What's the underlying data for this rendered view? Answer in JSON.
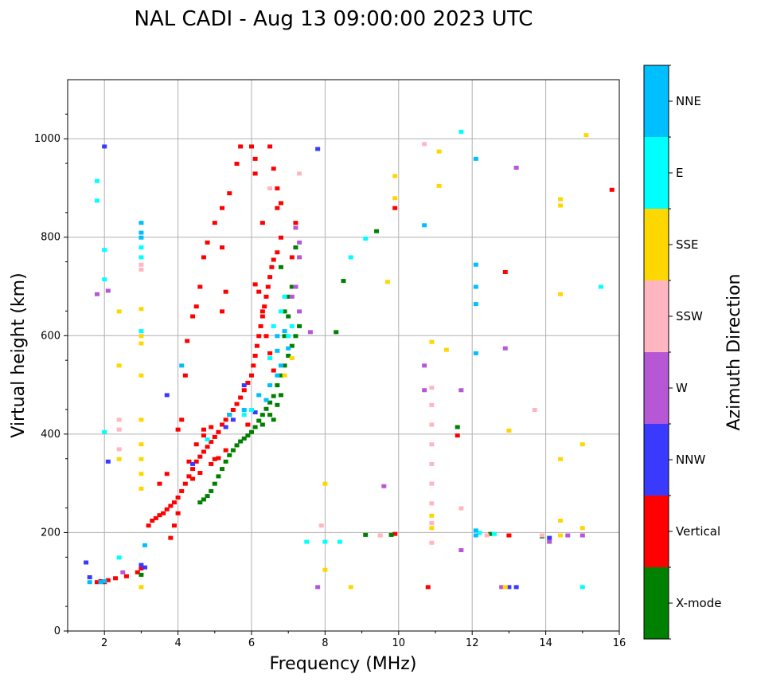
{
  "chart_data": {
    "type": "scatter",
    "title": "NAL CADI - Aug 13 09:00:00 2023 UTC",
    "xlabel": "Frequency (MHz)",
    "ylabel": "Virtual height (km)",
    "xlim": [
      1,
      16
    ],
    "ylim": [
      0,
      1120
    ],
    "xticks": [
      2,
      4,
      6,
      8,
      10,
      12,
      14,
      16
    ],
    "yticks": [
      0,
      200,
      400,
      600,
      800,
      1000
    ],
    "grid": true,
    "colorbar": {
      "label": "Azimuth Direction",
      "categories": [
        "X-mode",
        "Vertical",
        "NNW",
        "W",
        "SSW",
        "SSE",
        "E",
        "NNE"
      ],
      "colors": [
        "#008000",
        "#ff0000",
        "#3a3aff",
        "#b657d6",
        "#ffb6c1",
        "#ffd700",
        "#00ffff",
        "#00bfff"
      ]
    },
    "series": [
      {
        "name": "Vertical",
        "color": "#ff0000",
        "points": [
          [
            1.8,
            100
          ],
          [
            1.9,
            102
          ],
          [
            2.0,
            100
          ],
          [
            2.1,
            104
          ],
          [
            2.3,
            108
          ],
          [
            2.6,
            112
          ],
          [
            2.9,
            120
          ],
          [
            3.0,
            128
          ],
          [
            3.2,
            215
          ],
          [
            3.3,
            225
          ],
          [
            3.4,
            230
          ],
          [
            3.5,
            236
          ],
          [
            3.6,
            240
          ],
          [
            3.7,
            248
          ],
          [
            3.8,
            255
          ],
          [
            3.9,
            262
          ],
          [
            4.0,
            272
          ],
          [
            4.1,
            285
          ],
          [
            4.2,
            300
          ],
          [
            4.3,
            315
          ],
          [
            4.4,
            330
          ],
          [
            4.5,
            345
          ],
          [
            4.6,
            355
          ],
          [
            4.7,
            365
          ],
          [
            4.8,
            375
          ],
          [
            4.9,
            385
          ],
          [
            5.0,
            395
          ],
          [
            5.1,
            405
          ],
          [
            5.2,
            420
          ],
          [
            5.3,
            430
          ],
          [
            5.4,
            440
          ],
          [
            5.5,
            450
          ],
          [
            5.6,
            462
          ],
          [
            5.7,
            475
          ],
          [
            5.8,
            490
          ],
          [
            5.9,
            505
          ],
          [
            6.0,
            520
          ],
          [
            6.05,
            540
          ],
          [
            6.1,
            560
          ],
          [
            6.15,
            580
          ],
          [
            6.2,
            600
          ],
          [
            6.25,
            620
          ],
          [
            6.3,
            640
          ],
          [
            6.35,
            660
          ],
          [
            6.4,
            680
          ],
          [
            6.45,
            700
          ],
          [
            6.5,
            720
          ],
          [
            6.55,
            740
          ],
          [
            6.6,
            755
          ],
          [
            6.7,
            770
          ],
          [
            6.1,
            705
          ],
          [
            6.2,
            690
          ],
          [
            6.3,
            650
          ],
          [
            6.4,
            600
          ],
          [
            6.5,
            565
          ],
          [
            6.6,
            530
          ],
          [
            4.9,
            340
          ],
          [
            5.1,
            352
          ],
          [
            5.3,
            368
          ],
          [
            4.6,
            322
          ],
          [
            4.4,
            310
          ],
          [
            4.7,
            398
          ],
          [
            4.9,
            415
          ],
          [
            5.0,
            350
          ],
          [
            4.7,
            410
          ],
          [
            4.5,
            380
          ],
          [
            4.3,
            345
          ],
          [
            4.0,
            410
          ],
          [
            4.1,
            430
          ],
          [
            4.25,
            590
          ],
          [
            4.4,
            640
          ],
          [
            4.5,
            660
          ],
          [
            4.6,
            700
          ],
          [
            4.7,
            760
          ],
          [
            4.8,
            790
          ],
          [
            5.0,
            830
          ],
          [
            5.2,
            860
          ],
          [
            5.4,
            890
          ],
          [
            5.6,
            950
          ],
          [
            5.7,
            985
          ],
          [
            6.0,
            985
          ],
          [
            6.1,
            960
          ],
          [
            6.5,
            985
          ],
          [
            6.6,
            940
          ],
          [
            6.7,
            900
          ],
          [
            6.8,
            870
          ],
          [
            6.3,
            830
          ],
          [
            6.7,
            860
          ],
          [
            5.2,
            780
          ],
          [
            5.3,
            690
          ],
          [
            5.2,
            650
          ],
          [
            6.1,
            930
          ],
          [
            6.8,
            800
          ],
          [
            7.1,
            760
          ],
          [
            7.2,
            830
          ],
          [
            5.9,
            420
          ],
          [
            10.8,
            90
          ],
          [
            13.0,
            195
          ],
          [
            12.9,
            730
          ],
          [
            15.8,
            897
          ],
          [
            11.6,
            398
          ],
          [
            4.2,
            520
          ],
          [
            9.9,
            198
          ],
          [
            9.9,
            860
          ],
          [
            3.8,
            190
          ],
          [
            3.9,
            215
          ],
          [
            4.0,
            240
          ],
          [
            3.5,
            300
          ],
          [
            3.7,
            320
          ]
        ]
      },
      {
        "name": "X-mode",
        "color": "#008000",
        "points": [
          [
            4.6,
            262
          ],
          [
            4.7,
            268
          ],
          [
            4.8,
            275
          ],
          [
            4.9,
            285
          ],
          [
            5.0,
            300
          ],
          [
            5.1,
            315
          ],
          [
            5.2,
            330
          ],
          [
            5.3,
            345
          ],
          [
            5.4,
            358
          ],
          [
            5.5,
            368
          ],
          [
            5.6,
            378
          ],
          [
            5.7,
            386
          ],
          [
            5.8,
            392
          ],
          [
            5.9,
            398
          ],
          [
            6.0,
            405
          ],
          [
            6.1,
            415
          ],
          [
            6.2,
            428
          ],
          [
            6.3,
            440
          ],
          [
            6.4,
            452
          ],
          [
            6.5,
            465
          ],
          [
            6.6,
            478
          ],
          [
            6.7,
            500
          ],
          [
            6.8,
            520
          ],
          [
            6.9,
            540
          ],
          [
            7.0,
            560
          ],
          [
            7.1,
            580
          ],
          [
            7.2,
            600
          ],
          [
            7.3,
            620
          ],
          [
            6.6,
            430
          ],
          [
            6.7,
            460
          ],
          [
            6.8,
            480
          ],
          [
            6.5,
            440
          ],
          [
            6.3,
            420
          ],
          [
            6.9,
            650
          ],
          [
            7.0,
            680
          ],
          [
            7.1,
            700
          ],
          [
            6.9,
            600
          ],
          [
            7.0,
            640
          ],
          [
            7.2,
            780
          ],
          [
            6.8,
            740
          ],
          [
            8.3,
            608
          ],
          [
            8.5,
            712
          ],
          [
            9.4,
            813
          ],
          [
            9.1,
            196
          ],
          [
            9.8,
            196
          ],
          [
            12.5,
            198
          ],
          [
            13.9,
            193
          ],
          [
            11.6,
            415
          ],
          [
            3.0,
            115
          ]
        ]
      },
      {
        "name": "NNW",
        "color": "#3a3aff",
        "points": [
          [
            1.5,
            140
          ],
          [
            1.6,
            110
          ],
          [
            2.0,
            985
          ],
          [
            2.1,
            345
          ],
          [
            3.0,
            135
          ],
          [
            3.1,
            130
          ],
          [
            3.7,
            480
          ],
          [
            4.4,
            340
          ],
          [
            5.3,
            415
          ],
          [
            5.5,
            430
          ],
          [
            5.8,
            500
          ],
          [
            6.1,
            445
          ],
          [
            7.8,
            980
          ],
          [
            13.2,
            90
          ],
          [
            13.0,
            90
          ],
          [
            14.1,
            190
          ]
        ]
      },
      {
        "name": "W",
        "color": "#b657d6",
        "points": [
          [
            7.2,
            820
          ],
          [
            7.3,
            790
          ],
          [
            7.3,
            760
          ],
          [
            7.2,
            700
          ],
          [
            7.1,
            680
          ],
          [
            7.3,
            650
          ],
          [
            2.1,
            692
          ],
          [
            1.8,
            685
          ],
          [
            2.5,
            120
          ],
          [
            7.8,
            90
          ],
          [
            9.6,
            295
          ],
          [
            10.7,
            490
          ],
          [
            10.7,
            540
          ],
          [
            11.7,
            165
          ],
          [
            11.7,
            490
          ],
          [
            12.9,
            575
          ],
          [
            13.2,
            942
          ],
          [
            14.1,
            182
          ],
          [
            14.6,
            195
          ],
          [
            15.0,
            195
          ],
          [
            12.8,
            90
          ],
          [
            7.6,
            608
          ]
        ]
      },
      {
        "name": "SSW",
        "color": "#ffb6c1",
        "points": [
          [
            2.4,
            430
          ],
          [
            2.4,
            410
          ],
          [
            2.4,
            370
          ],
          [
            3.0,
            745
          ],
          [
            3.0,
            735
          ],
          [
            10.9,
            180
          ],
          [
            10.9,
            220
          ],
          [
            10.9,
            260
          ],
          [
            10.9,
            300
          ],
          [
            10.9,
            340
          ],
          [
            10.9,
            380
          ],
          [
            10.9,
            420
          ],
          [
            10.9,
            460
          ],
          [
            10.9,
            495
          ],
          [
            10.7,
            990
          ],
          [
            13.9,
            195
          ],
          [
            13.7,
            450
          ],
          [
            7.3,
            930
          ],
          [
            6.5,
            900
          ],
          [
            9.5,
            195
          ],
          [
            7.9,
            215
          ],
          [
            11.7,
            250
          ],
          [
            12.4,
            195
          ]
        ]
      },
      {
        "name": "SSE",
        "color": "#ffd700",
        "points": [
          [
            3.0,
            290
          ],
          [
            3.0,
            320
          ],
          [
            3.0,
            350
          ],
          [
            3.0,
            380
          ],
          [
            3.0,
            430
          ],
          [
            3.0,
            520
          ],
          [
            3.0,
            585
          ],
          [
            3.0,
            600
          ],
          [
            3.0,
            655
          ],
          [
            2.4,
            540
          ],
          [
            2.4,
            650
          ],
          [
            2.4,
            350
          ],
          [
            10.9,
            210
          ],
          [
            10.9,
            235
          ],
          [
            10.9,
            588
          ],
          [
            11.1,
            975
          ],
          [
            11.1,
            905
          ],
          [
            11.3,
            572
          ],
          [
            13.0,
            408
          ],
          [
            14.4,
            878
          ],
          [
            14.4,
            865
          ],
          [
            14.4,
            685
          ],
          [
            14.4,
            350
          ],
          [
            14.4,
            225
          ],
          [
            15.0,
            380
          ],
          [
            15.0,
            210
          ],
          [
            15.1,
            1008
          ],
          [
            9.9,
            925
          ],
          [
            9.9,
            880
          ],
          [
            9.7,
            710
          ],
          [
            8.0,
            300
          ],
          [
            8.0,
            125
          ],
          [
            8.7,
            90
          ],
          [
            6.9,
            520
          ],
          [
            7.1,
            555
          ],
          [
            12.9,
            90
          ],
          [
            14.4,
            195
          ],
          [
            3.0,
            90
          ]
        ]
      },
      {
        "name": "E",
        "color": "#00ffff",
        "points": [
          [
            3.0,
            780
          ],
          [
            3.0,
            760
          ],
          [
            3.0,
            610
          ],
          [
            1.8,
            915
          ],
          [
            1.8,
            875
          ],
          [
            2.0,
            715
          ],
          [
            2.0,
            775
          ],
          [
            2.0,
            405
          ],
          [
            2.4,
            150
          ],
          [
            6.8,
            650
          ],
          [
            6.9,
            680
          ],
          [
            7.0,
            600
          ],
          [
            7.1,
            620
          ],
          [
            6.6,
            620
          ],
          [
            6.5,
            555
          ],
          [
            5.8,
            440
          ],
          [
            6.0,
            450
          ],
          [
            4.8,
            390
          ],
          [
            7.5,
            182
          ],
          [
            8.0,
            182
          ],
          [
            8.4,
            182
          ],
          [
            8.7,
            760
          ],
          [
            9.1,
            798
          ],
          [
            15.0,
            90
          ],
          [
            15.5,
            700
          ],
          [
            11.7,
            1015
          ],
          [
            12.2,
            200
          ],
          [
            12.6,
            198
          ]
        ]
      },
      {
        "name": "NNE",
        "color": "#00bfff",
        "points": [
          [
            3.0,
            810
          ],
          [
            3.0,
            800
          ],
          [
            3.0,
            830
          ],
          [
            3.1,
            175
          ],
          [
            4.1,
            540
          ],
          [
            6.7,
            600
          ],
          [
            6.7,
            570
          ],
          [
            6.8,
            540
          ],
          [
            6.7,
            520
          ],
          [
            6.5,
            500
          ],
          [
            6.9,
            610
          ],
          [
            7.0,
            575
          ],
          [
            6.2,
            480
          ],
          [
            6.4,
            470
          ],
          [
            5.8,
            450
          ],
          [
            5.4,
            440
          ],
          [
            10.7,
            825
          ],
          [
            12.1,
            960
          ],
          [
            12.1,
            745
          ],
          [
            12.1,
            700
          ],
          [
            12.1,
            665
          ],
          [
            12.1,
            565
          ],
          [
            12.1,
            205
          ],
          [
            12.1,
            195
          ],
          [
            1.6,
            100
          ],
          [
            2.0,
            102
          ],
          [
            1.9,
            100
          ]
        ]
      }
    ]
  }
}
